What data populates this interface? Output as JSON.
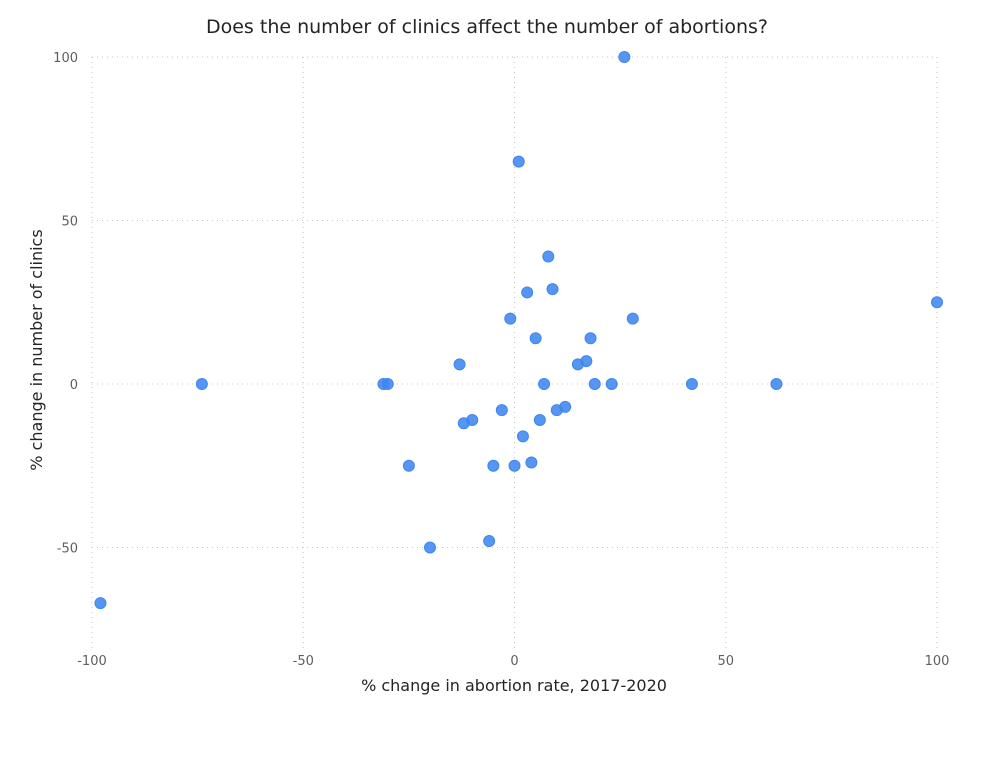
{
  "chart_data": {
    "type": "scatter",
    "title": "Does the number of clinics affect the number of abortions?",
    "xlabel": "% change in abortion rate, 2017-2020",
    "ylabel": "% change in number of clinics",
    "xlim": [
      -100,
      100
    ],
    "ylim": [
      -80,
      100
    ],
    "xticks": [
      -100,
      -50,
      0,
      50,
      100
    ],
    "yticks": [
      -50,
      0,
      50,
      100
    ],
    "x_tick_labels": [
      "-100",
      "-50",
      "0",
      "50",
      "100"
    ],
    "y_tick_labels": [
      "-50",
      "0",
      "50",
      "100"
    ],
    "grid": true,
    "color": "#3f86f0",
    "points": [
      {
        "x": 26,
        "y": 100
      },
      {
        "x": 1,
        "y": 68
      },
      {
        "x": 8,
        "y": 39
      },
      {
        "x": 9,
        "y": 29
      },
      {
        "x": 3,
        "y": 28
      },
      {
        "x": 100,
        "y": 25
      },
      {
        "x": -1,
        "y": 20
      },
      {
        "x": 28,
        "y": 20
      },
      {
        "x": 5,
        "y": 14
      },
      {
        "x": 18,
        "y": 14
      },
      {
        "x": -13,
        "y": 6
      },
      {
        "x": 15,
        "y": 6
      },
      {
        "x": 17,
        "y": 7
      },
      {
        "x": -74,
        "y": 0
      },
      {
        "x": -31,
        "y": 0
      },
      {
        "x": -30,
        "y": 0
      },
      {
        "x": 7,
        "y": 0
      },
      {
        "x": 19,
        "y": 0
      },
      {
        "x": 23,
        "y": 0
      },
      {
        "x": 42,
        "y": 0
      },
      {
        "x": 62,
        "y": 0
      },
      {
        "x": 12,
        "y": -7
      },
      {
        "x": 10,
        "y": -8
      },
      {
        "x": -3,
        "y": -8
      },
      {
        "x": -10,
        "y": -11
      },
      {
        "x": -12,
        "y": -12
      },
      {
        "x": 6,
        "y": -11
      },
      {
        "x": 2,
        "y": -16
      },
      {
        "x": -25,
        "y": -25
      },
      {
        "x": -5,
        "y": -25
      },
      {
        "x": 0,
        "y": -25
      },
      {
        "x": 4,
        "y": -24
      },
      {
        "x": -20,
        "y": -50
      },
      {
        "x": -6,
        "y": -48
      },
      {
        "x": -98,
        "y": -67
      }
    ]
  }
}
